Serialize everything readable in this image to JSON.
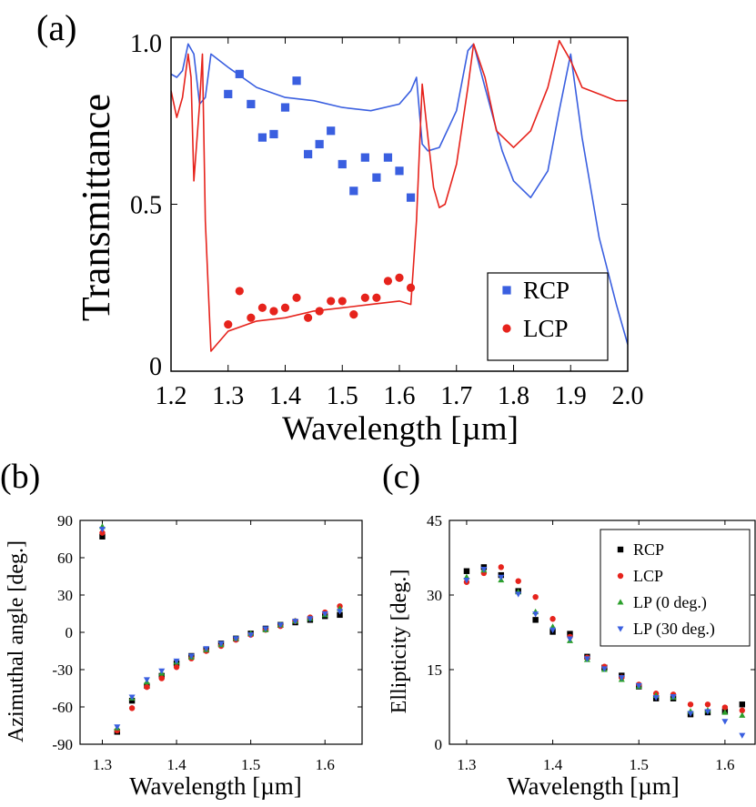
{
  "chart_data": [
    {
      "panel": "(a)",
      "type": "line",
      "xlabel": "Wavelength [µm]",
      "ylabel": "Transmittance",
      "xlim": [
        1.2,
        2.0
      ],
      "ylim": [
        0,
        1.0
      ],
      "xticks": [
        "1.2",
        "1.3",
        "1.4",
        "1.5",
        "1.6",
        "1.7",
        "1.8",
        "1.9",
        "2.0"
      ],
      "yticks": [
        "0",
        "0.5",
        "1.0"
      ],
      "legend": {
        "position": "bottom-right",
        "entries": [
          "RCP",
          "LCP"
        ]
      },
      "colors": {
        "RCP": "#3a5fe0",
        "LCP": "#e6231c"
      },
      "series": [
        {
          "name": "RCP simulated",
          "kind": "line",
          "color": "#3a5fe0",
          "x": [
            1.2,
            1.21,
            1.22,
            1.23,
            1.24,
            1.25,
            1.26,
            1.27,
            1.3,
            1.35,
            1.4,
            1.45,
            1.5,
            1.55,
            1.6,
            1.62,
            1.63,
            1.64,
            1.65,
            1.67,
            1.7,
            1.72,
            1.73,
            1.75,
            1.78,
            1.8,
            1.83,
            1.86,
            1.88,
            1.9,
            1.92,
            1.95,
            1.98,
            2.0
          ],
          "y": [
            0.89,
            0.88,
            0.9,
            0.98,
            0.95,
            0.8,
            0.82,
            0.95,
            0.91,
            0.85,
            0.82,
            0.81,
            0.79,
            0.78,
            0.8,
            0.84,
            0.88,
            0.68,
            0.66,
            0.67,
            0.78,
            0.96,
            0.98,
            0.85,
            0.66,
            0.57,
            0.52,
            0.6,
            0.78,
            0.95,
            0.7,
            0.4,
            0.2,
            0.08
          ]
        },
        {
          "name": "LCP simulated",
          "kind": "line",
          "color": "#e6231c",
          "x": [
            1.2,
            1.21,
            1.22,
            1.23,
            1.235,
            1.24,
            1.25,
            1.255,
            1.26,
            1.27,
            1.28,
            1.3,
            1.35,
            1.4,
            1.45,
            1.5,
            1.55,
            1.6,
            1.62,
            1.63,
            1.64,
            1.65,
            1.66,
            1.67,
            1.68,
            1.7,
            1.72,
            1.73,
            1.75,
            1.77,
            1.8,
            1.83,
            1.86,
            1.88,
            1.9,
            1.92,
            1.95,
            1.98,
            2.0
          ],
          "y": [
            0.84,
            0.76,
            0.82,
            0.95,
            0.88,
            0.57,
            0.8,
            0.95,
            0.45,
            0.06,
            0.08,
            0.12,
            0.15,
            0.16,
            0.18,
            0.19,
            0.2,
            0.21,
            0.2,
            0.45,
            0.86,
            0.7,
            0.55,
            0.49,
            0.5,
            0.62,
            0.85,
            0.98,
            0.88,
            0.72,
            0.67,
            0.72,
            0.85,
            0.99,
            0.93,
            0.85,
            0.83,
            0.81,
            0.81
          ]
        },
        {
          "name": "RCP",
          "kind": "square",
          "color": "#3a5fe0",
          "x": [
            1.3,
            1.32,
            1.34,
            1.36,
            1.38,
            1.4,
            1.42,
            1.44,
            1.46,
            1.48,
            1.5,
            1.52,
            1.54,
            1.56,
            1.58,
            1.6,
            1.62
          ],
          "y": [
            0.83,
            0.89,
            0.8,
            0.7,
            0.71,
            0.79,
            0.87,
            0.65,
            0.68,
            0.72,
            0.62,
            0.54,
            0.64,
            0.58,
            0.64,
            0.6,
            0.52
          ]
        },
        {
          "name": "LCP",
          "kind": "circle",
          "color": "#e6231c",
          "x": [
            1.3,
            1.32,
            1.34,
            1.36,
            1.38,
            1.4,
            1.42,
            1.44,
            1.46,
            1.48,
            1.5,
            1.52,
            1.54,
            1.56,
            1.58,
            1.6,
            1.62
          ],
          "y": [
            0.14,
            0.24,
            0.16,
            0.19,
            0.18,
            0.19,
            0.22,
            0.16,
            0.18,
            0.21,
            0.21,
            0.17,
            0.22,
            0.22,
            0.27,
            0.28,
            0.25
          ]
        }
      ]
    },
    {
      "panel": "(b)",
      "type": "scatter",
      "xlabel": "Wavelength [µm]",
      "ylabel": "Azimuthal angle [deg.]",
      "xlim": [
        1.27,
        1.65
      ],
      "ylim": [
        -90,
        90
      ],
      "xticks": [
        "1.3",
        "1.4",
        "1.5",
        "1.6"
      ],
      "yticks": [
        "-90",
        "-60",
        "-30",
        "0",
        "30",
        "60",
        "90"
      ],
      "x": [
        1.3,
        1.32,
        1.34,
        1.36,
        1.38,
        1.4,
        1.42,
        1.44,
        1.46,
        1.48,
        1.5,
        1.52,
        1.54,
        1.56,
        1.58,
        1.6,
        1.62
      ],
      "series": [
        {
          "name": "RCP",
          "marker": "square",
          "color": "#000000",
          "values": [
            77,
            -80,
            -55,
            -43,
            -35,
            -25,
            -19,
            -14,
            -9,
            -5,
            -1,
            3,
            6,
            8,
            10,
            13,
            14
          ]
        },
        {
          "name": "LCP",
          "marker": "circle",
          "color": "#e6231c",
          "values": [
            80,
            -79,
            -61,
            -44,
            -37,
            -28,
            -21,
            -15,
            -11,
            -6,
            -2,
            2,
            5,
            9,
            12,
            16,
            21
          ]
        },
        {
          "name": "LP (0 deg.)",
          "marker": "triangle-up",
          "color": "#2ca02c",
          "values": [
            85,
            -77,
            -53,
            -40,
            -33,
            -24,
            -20,
            -14,
            -10,
            -5,
            -1,
            2,
            6,
            9,
            11,
            14,
            19
          ]
        },
        {
          "name": "LP (30 deg.)",
          "marker": "triangle-down",
          "color": "#3a5fe0",
          "values": [
            83,
            -76,
            -52,
            -38,
            -31,
            -23,
            -19,
            -13,
            -9,
            -5,
            -2,
            3,
            6,
            9,
            11,
            15,
            17
          ]
        }
      ]
    },
    {
      "panel": "(c)",
      "type": "scatter",
      "xlabel": "Wavelength [µm]",
      "ylabel": "Ellipticity [deg.]",
      "xlim": [
        1.28,
        1.635
      ],
      "ylim": [
        0,
        45
      ],
      "xticks": [
        "1.3",
        "1.4",
        "1.5",
        "1.6"
      ],
      "yticks": [
        "0",
        "15",
        "30",
        "45"
      ],
      "legend": {
        "position": "top-right",
        "entries": [
          "RCP",
          "LCP",
          "LP (0 deg.)",
          "LP (30 deg.)"
        ]
      },
      "x": [
        1.3,
        1.32,
        1.34,
        1.36,
        1.38,
        1.4,
        1.42,
        1.44,
        1.46,
        1.48,
        1.5,
        1.52,
        1.54,
        1.56,
        1.58,
        1.6,
        1.62
      ],
      "series": [
        {
          "name": "RCP",
          "marker": "square",
          "color": "#000000",
          "values": [
            34.8,
            35.6,
            34.0,
            30.8,
            25.0,
            22.6,
            22.2,
            17.6,
            15.4,
            13.8,
            11.6,
            9.2,
            9.2,
            6.0,
            6.4,
            6.6,
            8.0
          ]
        },
        {
          "name": "LCP",
          "marker": "circle",
          "color": "#e6231c",
          "values": [
            32.6,
            34.4,
            35.6,
            32.8,
            29.6,
            25.2,
            21.6,
            17.4,
            15.6,
            13.4,
            12.0,
            10.2,
            10.0,
            8.0,
            8.0,
            7.4,
            6.8
          ]
        },
        {
          "name": "LP (0 deg.)",
          "marker": "triangle-up",
          "color": "#2ca02c",
          "values": [
            33.6,
            35.0,
            33.0,
            30.6,
            26.6,
            23.6,
            20.8,
            17.0,
            15.0,
            13.0,
            11.6,
            9.8,
            9.4,
            6.6,
            6.8,
            6.4,
            5.8
          ]
        },
        {
          "name": "LP (30 deg.)",
          "marker": "triangle-down",
          "color": "#3a5fe0",
          "values": [
            33.0,
            35.2,
            33.6,
            30.2,
            26.2,
            23.0,
            21.2,
            17.2,
            15.2,
            13.4,
            11.8,
            9.4,
            9.6,
            6.2,
            6.6,
            4.6,
            1.8
          ]
        }
      ]
    }
  ]
}
